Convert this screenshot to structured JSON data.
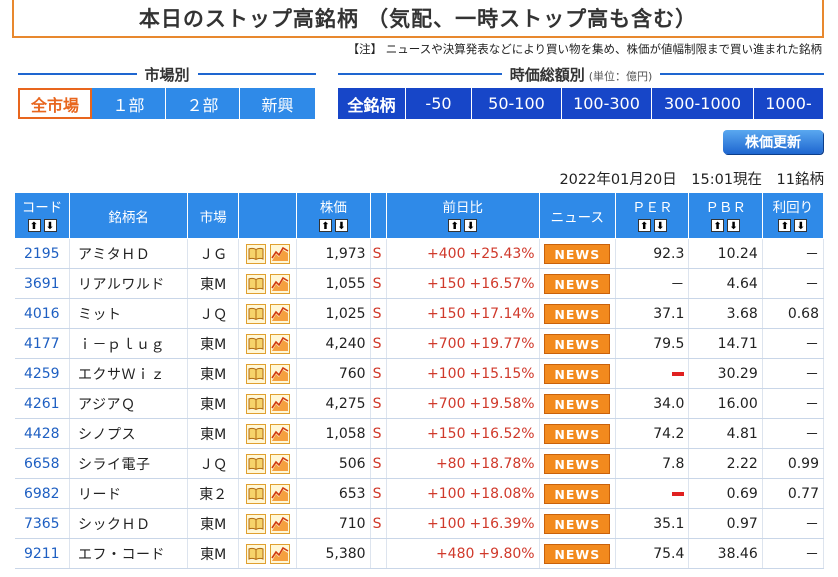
{
  "title": "本日のストップ高銘柄 （気配、一時ストップ高も含む）",
  "note": "【注】 ニュースや決算発表などにより買い物を集め、株価が値幅制限まで買い進まれた銘柄",
  "market_section": {
    "label": "市場別",
    "tabs": [
      {
        "label": "全市場",
        "active": true
      },
      {
        "label": "１部"
      },
      {
        "label": "２部"
      },
      {
        "label": "新興"
      }
    ]
  },
  "cap_section": {
    "label": "時価総額別",
    "unit": "(単位：億円)",
    "tabs": [
      {
        "label": "全銘柄"
      },
      {
        "label": "-50"
      },
      {
        "label": "50-100"
      },
      {
        "label": "100-300"
      },
      {
        "label": "300-1000"
      },
      {
        "label": "1000-"
      }
    ]
  },
  "update_button": "株価更新",
  "timestamp": "2022年01月20日　15:01現在　11銘柄",
  "columns": {
    "code": "コード",
    "name": "銘柄名",
    "market": "市場",
    "price": "株価",
    "change": "前日比",
    "news": "ニュース",
    "per": "ＰＥＲ",
    "pbr": "ＰＢＲ",
    "yield": "利回り"
  },
  "rows": [
    {
      "code": "2195",
      "name": "アミタＨＤ",
      "market": "ＪＧ",
      "price": "1,973",
      "flag": "S",
      "change": "+400",
      "pct": "+25.43%",
      "news": "NEWS",
      "per": "92.3",
      "pbr": "10.24",
      "yield": "－"
    },
    {
      "code": "3691",
      "name": "リアルワルド",
      "market": "東M",
      "price": "1,055",
      "flag": "S",
      "change": "+150",
      "pct": "+16.57%",
      "news": "NEWS",
      "per": "－",
      "pbr": "4.64",
      "yield": "－"
    },
    {
      "code": "4016",
      "name": "ミット",
      "market": "ＪＱ",
      "price": "1,025",
      "flag": "S",
      "change": "+150",
      "pct": "+17.14%",
      "news": "NEWS",
      "per": "37.1",
      "pbr": "3.68",
      "yield": "0.68"
    },
    {
      "code": "4177",
      "name": "ｉ－ｐｌｕｇ",
      "market": "東M",
      "price": "4,240",
      "flag": "S",
      "change": "+700",
      "pct": "+19.77%",
      "news": "NEWS",
      "per": "79.5",
      "pbr": "14.71",
      "yield": "－"
    },
    {
      "code": "4259",
      "name": "エクサＷｉｚ",
      "market": "東M",
      "price": "760",
      "flag": "S",
      "change": "+100",
      "pct": "+15.15%",
      "news": "NEWS",
      "per": "",
      "per_redbar": true,
      "pbr": "30.29",
      "yield": "－"
    },
    {
      "code": "4261",
      "name": "アジアＱ",
      "market": "東M",
      "price": "4,275",
      "flag": "S",
      "change": "+700",
      "pct": "+19.58%",
      "news": "NEWS",
      "per": "34.0",
      "pbr": "16.00",
      "yield": "－"
    },
    {
      "code": "4428",
      "name": "シノプス",
      "market": "東M",
      "price": "1,058",
      "flag": "S",
      "change": "+150",
      "pct": "+16.52%",
      "news": "NEWS",
      "per": "74.2",
      "pbr": "4.81",
      "yield": "－"
    },
    {
      "code": "6658",
      "name": "シライ電子",
      "market": "ＪＱ",
      "price": "506",
      "flag": "S",
      "change": "+80",
      "pct": "+18.78%",
      "news": "NEWS",
      "per": "7.8",
      "pbr": "2.22",
      "yield": "0.99"
    },
    {
      "code": "6982",
      "name": "リード",
      "market": "東２",
      "price": "653",
      "flag": "S",
      "change": "+100",
      "pct": "+18.08%",
      "news": "NEWS",
      "per": "",
      "per_redbar": true,
      "pbr": "0.69",
      "yield": "0.77"
    },
    {
      "code": "7365",
      "name": "シックＨＤ",
      "market": "東M",
      "price": "710",
      "flag": "S",
      "change": "+100",
      "pct": "+16.39%",
      "news": "NEWS",
      "per": "35.1",
      "pbr": "0.97",
      "yield": "－"
    },
    {
      "code": "9211",
      "name": "エフ・コード",
      "market": "東M",
      "price": "5,380",
      "flag": "",
      "change": "+480",
      "pct": "+9.80%",
      "news": "NEWS",
      "per": "75.4",
      "pbr": "38.46",
      "yield": "－"
    }
  ]
}
